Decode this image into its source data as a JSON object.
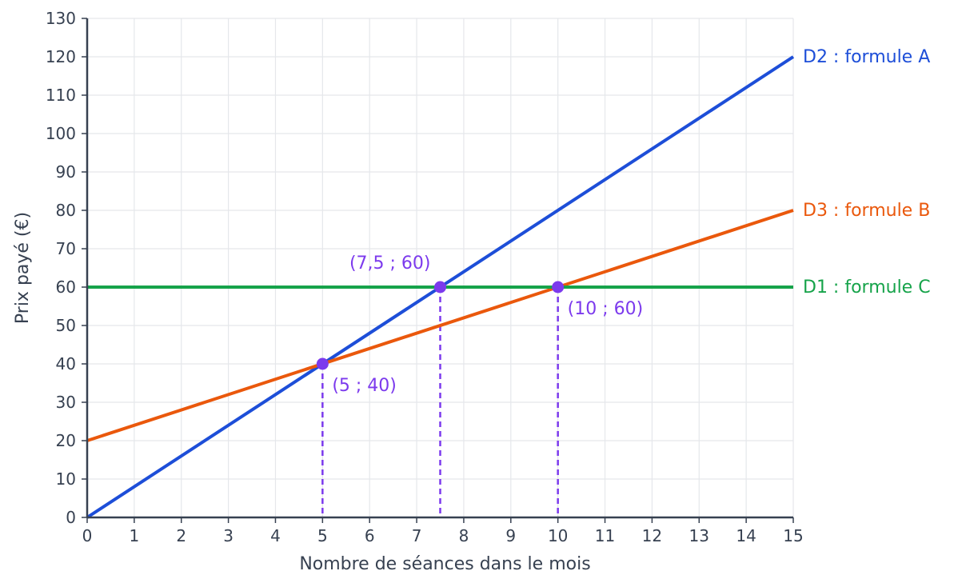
{
  "chart_data": {
    "type": "line",
    "xlabel": "Nombre de séances dans le mois",
    "ylabel": "Prix payé (€)",
    "xlim": [
      0,
      15
    ],
    "ylim": [
      0,
      130
    ],
    "x_ticks": [
      0,
      1,
      2,
      3,
      4,
      5,
      6,
      7,
      8,
      9,
      10,
      11,
      12,
      13,
      14,
      15
    ],
    "y_ticks": [
      0,
      10,
      20,
      30,
      40,
      50,
      60,
      70,
      80,
      90,
      100,
      110,
      120,
      130
    ],
    "grid": true,
    "series": [
      {
        "name": "D2 : formule A",
        "color": "#1d4ed8",
        "x": [
          0,
          15
        ],
        "y": [
          0,
          120
        ]
      },
      {
        "name": "D3 : formule B",
        "color": "#ea580c",
        "x": [
          0,
          15
        ],
        "y": [
          20,
          80
        ]
      },
      {
        "name": "D1 : formule C",
        "color": "#16a34a",
        "x": [
          0,
          15
        ],
        "y": [
          60,
          60
        ]
      }
    ],
    "points": [
      {
        "x": 5,
        "y": 40,
        "label": "(5 ; 40)",
        "label_pos": "below-right"
      },
      {
        "x": 7.5,
        "y": 60,
        "label": "(7,5 ; 60)",
        "label_pos": "above-left"
      },
      {
        "x": 10,
        "y": 60,
        "label": "(10 ; 60)",
        "label_pos": "below-right"
      }
    ],
    "point_color": "#7c3aed"
  }
}
